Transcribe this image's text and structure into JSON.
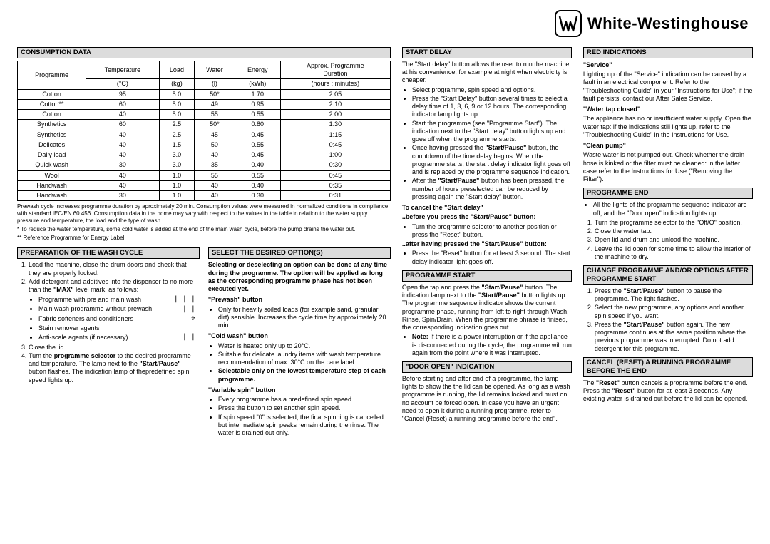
{
  "brand": "White-Westinghouse",
  "consumption": {
    "title": "CONSUMPTION DATA",
    "headers": [
      "Programme",
      "Temperature (°C)",
      "Load (kg)",
      "Water (l)",
      "Energy (kWh)",
      "Approx. Programme Duration (hours : minutes)"
    ],
    "rows": [
      [
        "Cotton",
        "95",
        "5.0",
        "50*",
        "1.70",
        "2:05"
      ],
      [
        "Cotton**",
        "60",
        "5.0",
        "49",
        "0.95",
        "2:10"
      ],
      [
        "Cotton",
        "40",
        "5.0",
        "55",
        "0.55",
        "2:00"
      ],
      [
        "Synthetics",
        "60",
        "2.5",
        "50*",
        "0.80",
        "1:30"
      ],
      [
        "Synthetics",
        "40",
        "2.5",
        "45",
        "0.45",
        "1:15"
      ],
      [
        "Delicates",
        "40",
        "1.5",
        "50",
        "0.55",
        "0:45"
      ],
      [
        "Daily load",
        "40",
        "3.0",
        "40",
        "0.45",
        "1:00"
      ],
      [
        "Quick wash",
        "30",
        "3.0",
        "35",
        "0.40",
        "0:30"
      ],
      [
        "Wool",
        "40",
        "1.0",
        "55",
        "0.55",
        "0:45"
      ],
      [
        "Handwash",
        "40",
        "1.0",
        "40",
        "0.40",
        "0:35"
      ],
      [
        "Handwash",
        "30",
        "1.0",
        "40",
        "0.30",
        "0:31"
      ]
    ],
    "note1": "Prewash cycle increases programme duration by aproximately 20 min. Consumption values were measured in normalized conditions in compliance with standard IEC/EN 60 456. Consumption data in the home may vary with respect to the values in the table in relation to the water supply pressure and temperature, the load and the type of wash.",
    "note2": "*  To reduce the water temperature, some cold water is added at the end of the main wash cycle, before the pump drains the water out.",
    "note3": "**  Reference Programme for Energy Label."
  },
  "prep": {
    "title": "PREPARATION OF THE WASH CYCLE",
    "ol1": "Load the machine, close the drum doors and check that they are properly locked.",
    "ol2_a": "Add detergent and additives into the dispenser to no more than the ",
    "ol2_b": "\"MAX\"",
    "ol2_c": " level mark, as follows:",
    "items": [
      {
        "t": "Programme with pre and main wash",
        "s": "|   | |"
      },
      {
        "t": "Main wash programme without prewash",
        "s": "| |"
      },
      {
        "t": "Fabric softeners and conditioners",
        "s": "✲"
      },
      {
        "t": "Stain remover agents",
        "s": ""
      },
      {
        "t": "Anti-scale agents (if necessary)",
        "s": "| |"
      }
    ],
    "ol3": "Close the lid.",
    "ol4_a": "Turn the ",
    "ol4_b": "programme selector",
    "ol4_c": " to the desired programme and temperature. The lamp next to the ",
    "ol4_d": "\"Start/Pause\"",
    "ol4_e": " button flashes. The indication lamp of thepredefined spin speed lights up."
  },
  "select": {
    "title": "SELECT THE DESIRED OPTION(S)",
    "intro": "Selecting or deselecting an option can be done at any time during the programme. The option will be applied as long as the corresponding programme phase has not been executed yet.",
    "h1": "\"Prewash\" button",
    "b1": "Only for heavily soiled loads (for example sand, granular dirt) sensible. Increases the cycle time by approximately 20 min.",
    "h2": "\"Cold wash\" button",
    "b2a": "Water is heated only up to 20°C.",
    "b2b": "Suitable for delicate laundry items with wash temperature recommendation of max. 30°C on the care label.",
    "b2c": "Selectable only on the lowest temperature step of each programme.",
    "h3": "\"Variable spin\" button",
    "b3a": "Every programme has a predefined spin speed.",
    "b3b": "Press the button to set another spin speed.",
    "b3c": "If spin speed \"0\" is selected, the final spinning is cancelled but intermediate spin peaks remain during the rinse. The water is drained out only."
  },
  "startdelay": {
    "title": "START DELAY",
    "intro": "The \"Start delay\" button allows the user to run the machine at his convenience, for example at night when electricity is cheaper.",
    "b1": "Select programme, spin speed and options.",
    "b2": "Press the \"Start Delay\" button several times to select a delay time of 1, 3, 6, 9 or 12 hours. The corresponding indicator lamp lights up.",
    "b3": "Start the programme (see \"Programme Start\"). The indication next to the \"Start delay\" button lights up and goes off when the programme starts.",
    "b4_a": "Once having pressed the ",
    "b4_b": "\"Start/Pause\"",
    "b4_c": " button, the countdown of the time delay begins. When the programme starts, the start delay indicator light goes off and is replaced by the programme sequence indication.",
    "b5_a": "After the ",
    "b5_b": "\"Start/Pause\"",
    "b5_c": " button has been pressed, the number of hours preselected can be reduced by pressing again the \"Start delay\" button.",
    "cancel_h": "To cancel the \"Start delay\"",
    "cancel_sub1": "..before you press the \"Start/Pause\" button:",
    "cancel_b1": "Turn the programme selector to another position or press the \"Reset\" button.",
    "cancel_sub2": "..after having pressed the \"Start/Pause\" button:",
    "cancel_b2": "Press the \"Reset\" button for at least 3 second. The start delay indicator light goes off."
  },
  "progstart": {
    "title": "PROGRAMME START",
    "p1_a": "Open the tap and press the ",
    "p1_b": "\"Start/Pause\"",
    "p1_c": " button. The indication lamp next to the ",
    "p1_e": " button lights up. The programme sequence indicator shows the current programme phase, running from left to right through Wash, Rinse, Spin/Drain. When the programme phrase is finised, the corresponding indication goes out.",
    "note_a": "Note: ",
    "note_b": "If there is a power interruption or if the appliance is disconnected during the cycle, the programme will run again from the point where it was interrupted."
  },
  "door": {
    "title": "\"DOOR OPEN\" INDICATION",
    "p": "Before starting and after end of a programme, the lamp lights to show the the lid can be opened. As long as a wash programme is running, the lid remains locked and must on no account be forced open. In case you have an urgent need to open it during a running programme, refer to \"Cancel (Reset) a running programme before the end\"."
  },
  "red": {
    "title": "RED INDICATIONS",
    "h1": "\"Service\"",
    "p1": "Lighting up of the \"Service\" indication can be caused by a fault in an electrical component. Refer to the \"Troubleshooting Guide\" in your \"Instructions for Use\"; if the fault persists, contact our After Sales Service.",
    "h2": "\"Water tap closed\"",
    "p2": "The appliance has no or insufficient water supply. Open the water tap: if the indications still lights up, refer to the \"Troubleshooting Guide\" in the Instructions for Use.",
    "h3": "\"Clean pump\"",
    "p3": "Waste water is not pumped out. Check whether the drain hose is kinked or the filter must be cleaned: in the latter case refer to the Instructions for Use (\"Removing the Filter\")."
  },
  "progend": {
    "title": "PROGRAMME END",
    "b1": "All the lights of the programme sequence indicator are off, and the \"Door open\" indication lights up.",
    "o1": "Turn the programme selector to the \"Off/O\" position.",
    "o2": "Close the water tap.",
    "o3": "Open lid and drum and unload the machine.",
    "o4": "Leave the lid open for some time to allow the interior of the machine to dry."
  },
  "change": {
    "title": "CHANGE PROGRAMME AND/OR OPTIONS AFTER PROGRAMME START",
    "o1_a": "Press the ",
    "o1_b": "\"Start/Pause\"",
    "o1_c": " button to pause the programme. The light flashes.",
    "o2": "Select the new programme, any options and another spin speed if you want.",
    "o3_a": "Press the ",
    "o3_c": " button again. The new programme continues at the same position where the previous programme was interrupted. Do not add detergent for this programme."
  },
  "cancel": {
    "title": "CANCEL (RESET) A RUNNING PROGRAMME BEFORE THE END",
    "p_a": "The ",
    "p_b": "\"Reset\"",
    "p_c": " button cancels a programme before the end. Press the ",
    "p_e": " button for at least 3 seconds. Any existing water is drained out before the lid can be opened."
  }
}
